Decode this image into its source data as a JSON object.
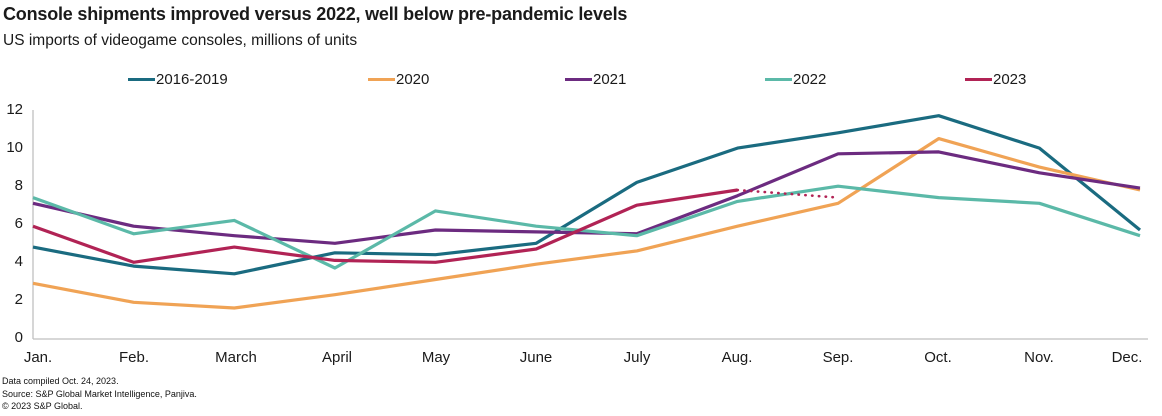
{
  "header": {
    "title": "Console shipments improved versus 2022, well below pre-pandemic levels",
    "subtitle": "US imports of videogame consoles, millions of units"
  },
  "legend": [
    {
      "label": "2016-2019",
      "color": "#1A6B80"
    },
    {
      "label": "2020",
      "color": "#F0A355"
    },
    {
      "label": "2021",
      "color": "#6C2B80"
    },
    {
      "label": "2022",
      "color": "#5BB9A8"
    },
    {
      "label": "2023",
      "color": "#B12355"
    }
  ],
  "chart_data": {
    "type": "line",
    "title": "Console shipments improved versus 2022, well below pre-pandemic levels",
    "subtitle": "US imports of videogame consoles, millions of units",
    "categories": [
      "Jan.",
      "Feb.",
      "March",
      "April",
      "May",
      "June",
      "July",
      "Aug.",
      "Sep.",
      "Oct.",
      "Nov.",
      "Dec."
    ],
    "yticks": [
      0,
      2,
      4,
      6,
      8,
      10,
      12
    ],
    "ylim": [
      0,
      12
    ],
    "grid": false,
    "legend_position": "top",
    "series": [
      {
        "name": "2016-2019",
        "color": "#1A6B80",
        "dash": false,
        "values": [
          4.8,
          3.8,
          3.4,
          4.5,
          4.4,
          5.0,
          8.2,
          10.0,
          10.8,
          11.7,
          10.0,
          5.7
        ]
      },
      {
        "name": "2020",
        "color": "#F0A355",
        "dash": false,
        "values": [
          2.9,
          1.9,
          1.6,
          2.3,
          3.1,
          3.9,
          4.6,
          5.9,
          7.1,
          10.5,
          9.0,
          7.8
        ]
      },
      {
        "name": "2021",
        "color": "#6C2B80",
        "dash": false,
        "values": [
          7.1,
          5.9,
          5.4,
          5.0,
          5.7,
          5.6,
          5.5,
          7.5,
          9.7,
          9.8,
          8.7,
          7.9
        ]
      },
      {
        "name": "2022",
        "color": "#5BB9A8",
        "dash": false,
        "values": [
          7.4,
          5.5,
          6.2,
          3.7,
          6.7,
          5.9,
          5.4,
          7.2,
          8.0,
          7.4,
          7.1,
          5.4
        ]
      },
      {
        "name": "2023",
        "color": "#B12355",
        "dash": false,
        "values": [
          5.9,
          4.0,
          4.8,
          4.1,
          4.0,
          4.7,
          7.0,
          7.8,
          null,
          null,
          null,
          null
        ]
      },
      {
        "name": "2023 estimate",
        "color": "#B12355",
        "dash": true,
        "values": [
          null,
          null,
          null,
          null,
          null,
          null,
          null,
          7.8,
          7.4,
          null,
          null,
          null
        ]
      }
    ]
  },
  "footer": {
    "lines": [
      "Data compiled Oct. 24, 2023.",
      "Source: S&P Global Market Intelligence, Panjiva.",
      "© 2023 S&P Global."
    ]
  }
}
